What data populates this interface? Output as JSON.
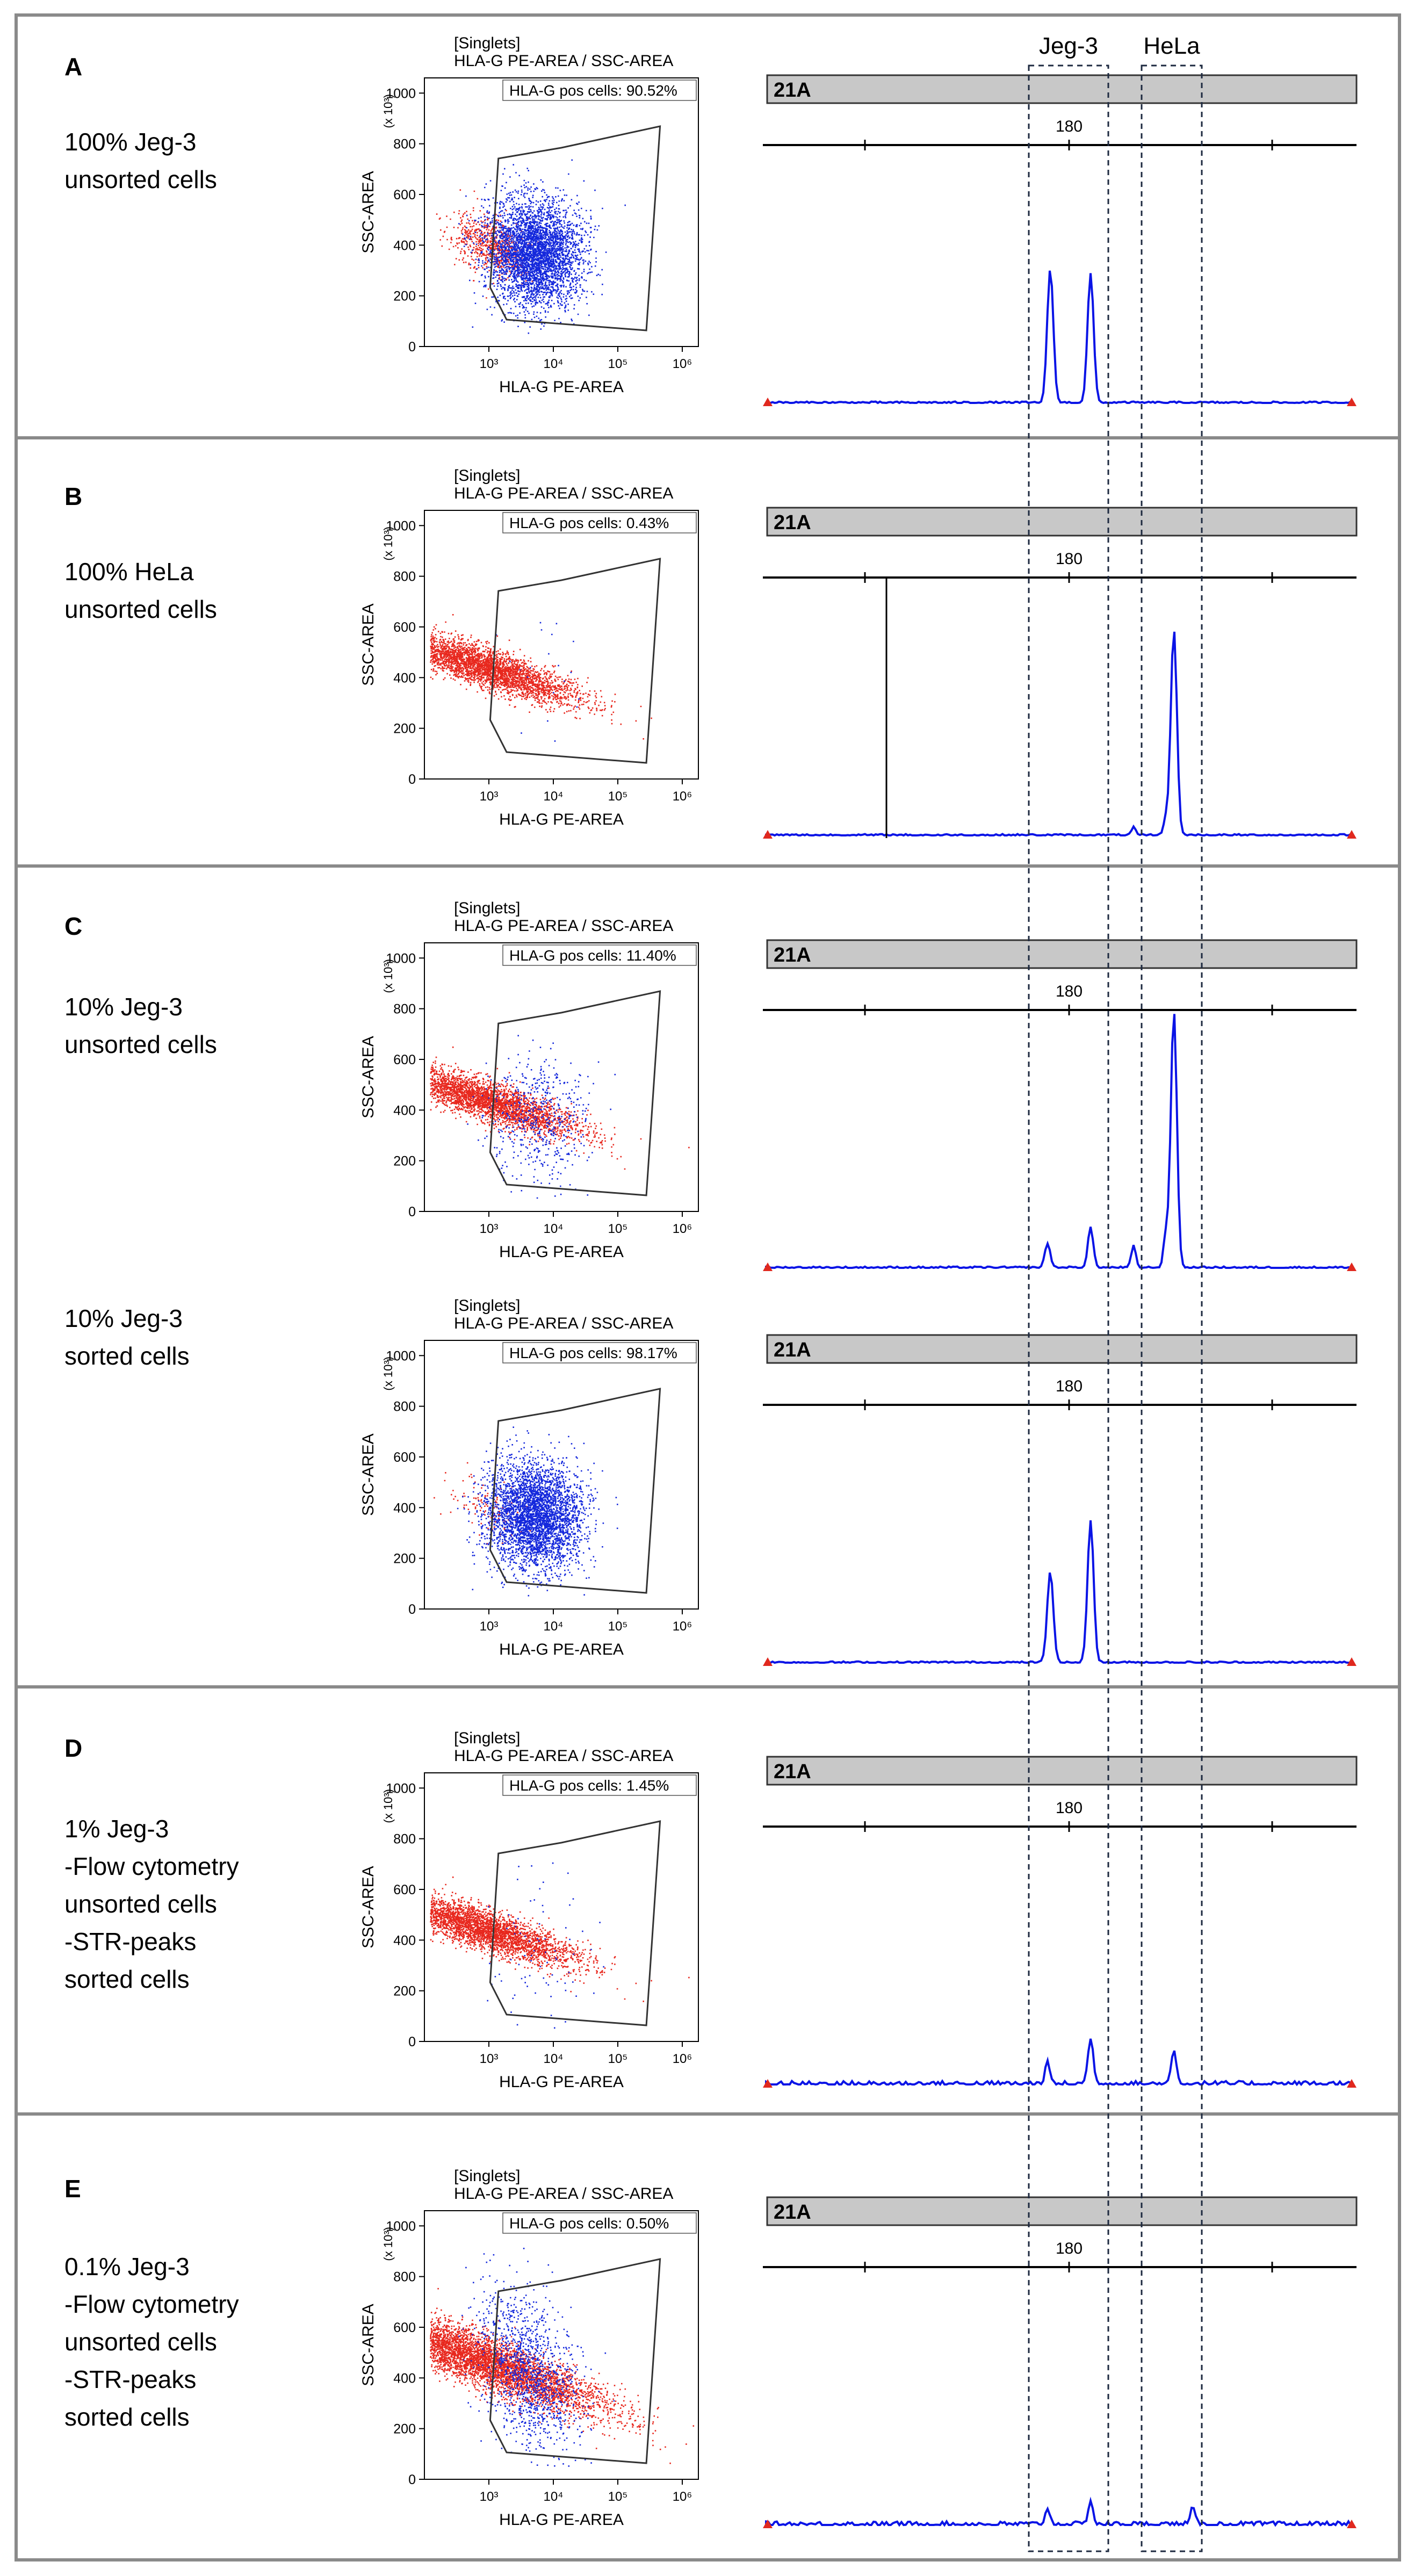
{
  "colors": {
    "gate_neg": "#e8281e",
    "gate_pos": "#1428dc",
    "trace": "#0a14e6",
    "frame": "#8a8a8a",
    "bin_bar": "#c8c8c8",
    "guide": "#1e2a40",
    "marker": "#e0281e"
  },
  "column_labels": {
    "jeg3": "Jeg-3",
    "hela": "HeLa"
  },
  "flow_common": {
    "title_line1": "[Singlets]",
    "title_line2": "HLA-G PE-AREA / SSC-AREA",
    "xlabel": "HLA-G PE-AREA",
    "ylabel": "SSC-AREA",
    "y_scale": "(x 10³)",
    "y_ticks": [
      "0",
      "200",
      "400",
      "600",
      "800",
      "1000"
    ],
    "x_ticks": [
      "10³",
      "10⁴",
      "10⁵",
      "10⁶"
    ],
    "gate_prefix": "HLA-G pos cells: "
  },
  "str_common": {
    "marker": "21A",
    "ruler_label": "180"
  },
  "panels": [
    {
      "letter": "A",
      "desc": [
        "100% Jeg-3",
        "unsorted cells"
      ],
      "plots": [
        {
          "gate_value": "90.52%"
        }
      ]
    },
    {
      "letter": "B",
      "desc": [
        "100% HeLa",
        "unsorted cells"
      ],
      "plots": [
        {
          "gate_value": "0.43%"
        }
      ]
    },
    {
      "letter": "C",
      "desc": [
        "10% Jeg-3",
        "unsorted cells"
      ],
      "desc2": [
        "10% Jeg-3",
        "sorted cells"
      ],
      "plots": [
        {
          "gate_value": "11.40%"
        },
        {
          "gate_value": "98.17%"
        }
      ]
    },
    {
      "letter": "D",
      "desc": [
        "1% Jeg-3",
        "-Flow cytometry",
        "unsorted cells",
        "-STR-peaks",
        "sorted cells"
      ],
      "plots": [
        {
          "gate_value": "1.45%"
        }
      ]
    },
    {
      "letter": "E",
      "desc": [
        "0.1% Jeg-3",
        "-Flow cytometry",
        "unsorted cells",
        "-STR-peaks",
        "sorted cells"
      ],
      "plots": [
        {
          "gate_value": "0.50%"
        }
      ]
    }
  ]
}
